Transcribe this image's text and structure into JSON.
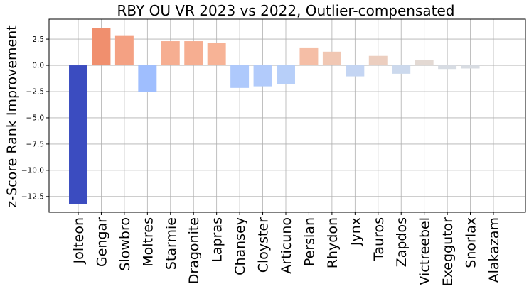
{
  "chart_data": {
    "type": "bar",
    "title": "RBY OU VR 2023 vs 2022, Outlier-compensated",
    "xlabel": "",
    "ylabel": "z-Score Rank Improvement",
    "categories": [
      "Jolteon",
      "Gengar",
      "Slowbro",
      "Moltres",
      "Starmie",
      "Dragonite",
      "Lapras",
      "Chansey",
      "Cloyster",
      "Articuno",
      "Persian",
      "Rhydon",
      "Jynx",
      "Tauros",
      "Zapdos",
      "Victreebel",
      "Exeggutor",
      "Snorlax",
      "Alakazam"
    ],
    "values": [
      -13.2,
      3.55,
      2.8,
      -2.5,
      2.3,
      2.3,
      2.15,
      -2.15,
      -2.0,
      -1.8,
      1.7,
      1.3,
      -1.05,
      0.9,
      -0.8,
      0.5,
      -0.35,
      -0.3,
      0.05
    ],
    "colors": [
      "#3b4cc0",
      "#f08f6e",
      "#f4a183",
      "#9fbefe",
      "#f6ae91",
      "#f6ae91",
      "#f7b396",
      "#aec9fc",
      "#b2cbfb",
      "#b7cff9",
      "#f5bea6",
      "#f1c7b3",
      "#c4d5f3",
      "#eccebf",
      "#ccd9ed",
      "#e3d9d3",
      "#d7dce3",
      "#d8dce2",
      "#dddcdc"
    ],
    "ylim": [
      -14,
      4.4
    ],
    "yticks": [
      2.5,
      0.0,
      -2.5,
      -5.0,
      -7.5,
      -10.0,
      -12.5
    ],
    "ytick_labels": [
      "2.5",
      "0.0",
      "−2.5",
      "−5.0",
      "−7.5",
      "−10.0",
      "−12.5"
    ],
    "grid": true,
    "legend": "none"
  }
}
